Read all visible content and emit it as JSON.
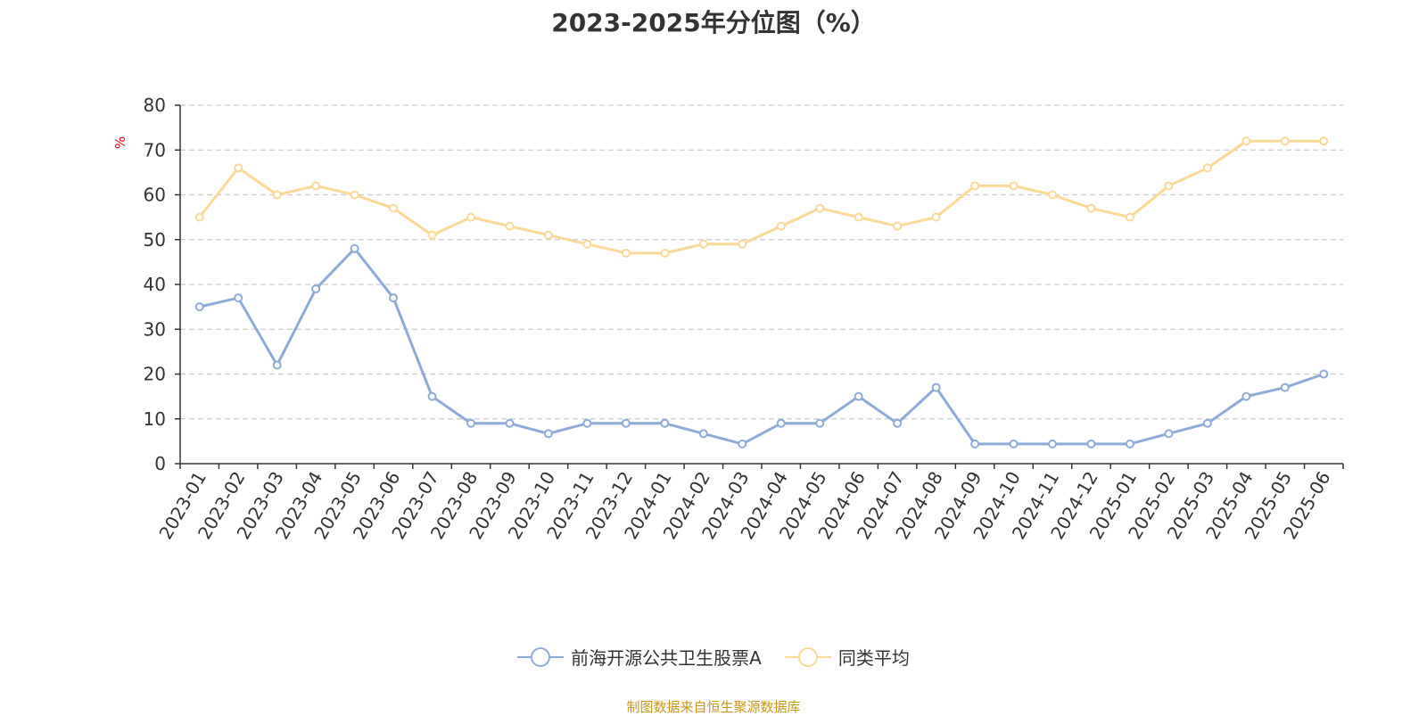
{
  "title": "2023-2025年分位图（%）",
  "source_note": "制图数据来自恒生聚源数据库",
  "chart_data": {
    "type": "line",
    "title": "2023-2025年分位图（%）",
    "ylabel": "%",
    "ylim": [
      0,
      80
    ],
    "yticks": [
      0,
      10,
      20,
      30,
      40,
      50,
      60,
      70,
      80
    ],
    "grid": true,
    "legend_position": "bottom",
    "categories": [
      "2023-01",
      "2023-02",
      "2023-03",
      "2023-04",
      "2023-05",
      "2023-06",
      "2023-07",
      "2023-08",
      "2023-09",
      "2023-10",
      "2023-11",
      "2023-12",
      "2024-01",
      "2024-02",
      "2024-03",
      "2024-04",
      "2024-05",
      "2024-06",
      "2024-07",
      "2024-08",
      "2024-09",
      "2024-10",
      "2024-11",
      "2024-12",
      "2025-01",
      "2025-02",
      "2025-03",
      "2025-04",
      "2025-05",
      "2025-06"
    ],
    "series": [
      {
        "name": "前海开源公共卫生股票A",
        "color": "#8eabd8",
        "values": [
          35,
          37,
          22,
          39,
          48,
          37,
          15,
          9,
          9,
          6.7,
          9,
          9,
          9,
          6.7,
          4.4,
          9,
          9,
          15,
          9,
          17,
          4.4,
          4.4,
          4.4,
          4.4,
          4.4,
          6.7,
          9,
          15,
          17,
          20
        ]
      },
      {
        "name": "同类平均",
        "color": "#fad996",
        "values": [
          55,
          66,
          60,
          62,
          60,
          57,
          51,
          55,
          53,
          51,
          49,
          47,
          47,
          49,
          49,
          53,
          57,
          55,
          53,
          55,
          62,
          62,
          60,
          57,
          55,
          62,
          66,
          72,
          72,
          72
        ]
      }
    ]
  }
}
